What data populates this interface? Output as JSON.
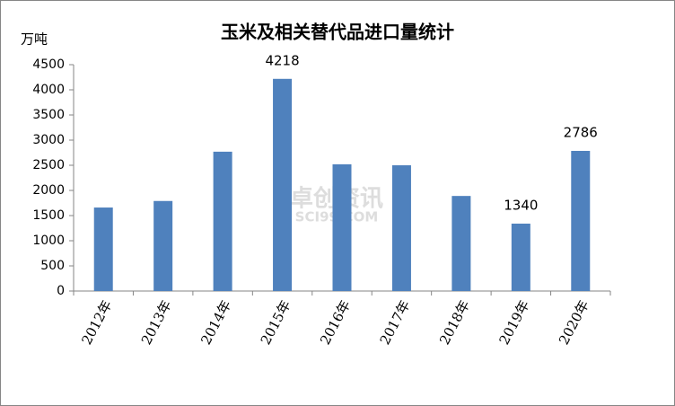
{
  "chart_data": {
    "type": "bar",
    "title": "玉米及相关替代品进口量统计",
    "y_label": "万吨",
    "categories": [
      "2012年",
      "2013年",
      "2014年",
      "2015年",
      "2016年",
      "2017年",
      "2018年",
      "2019年",
      "2020年"
    ],
    "values": [
      1660,
      1790,
      2770,
      4218,
      2520,
      2500,
      1890,
      1340,
      2786
    ],
    "value_labels": [
      null,
      null,
      null,
      "4218",
      null,
      null,
      null,
      "1340",
      "2786"
    ],
    "color": "#4f81bd",
    "ylim": [
      0,
      4500
    ],
    "yticks": [
      0,
      500,
      1000,
      1500,
      2000,
      2500,
      3000,
      3500,
      4000,
      4500
    ],
    "grid": false,
    "watermark": [
      "卓创资讯",
      "SCI99.COM"
    ]
  }
}
